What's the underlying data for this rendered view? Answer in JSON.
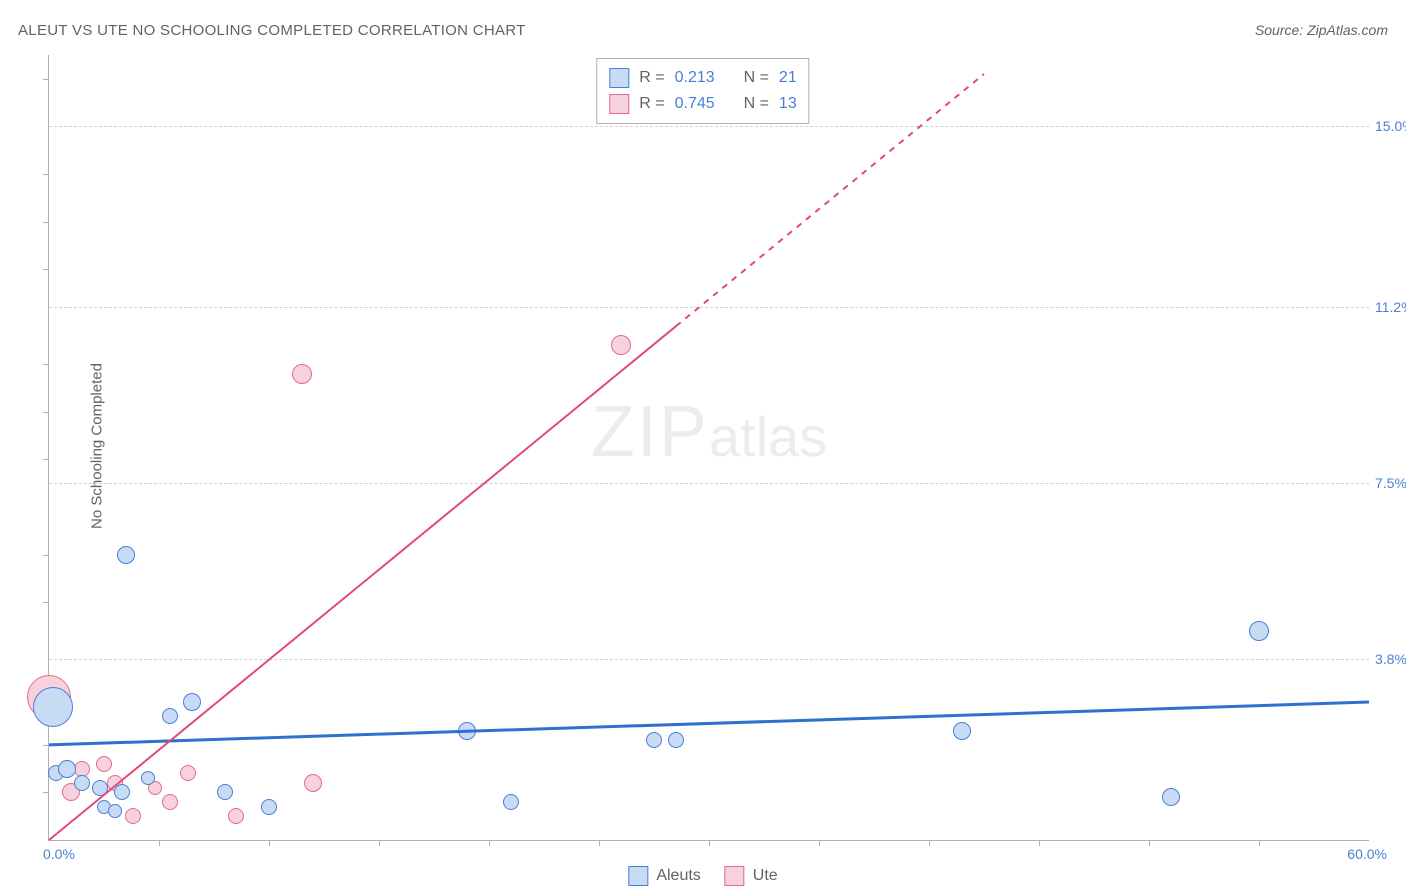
{
  "header": {
    "title": "ALEUT VS UTE NO SCHOOLING COMPLETED CORRELATION CHART",
    "source": "Source: ZipAtlas.com"
  },
  "axis": {
    "y_title": "No Schooling Completed",
    "x_min": 0.0,
    "x_max": 60.0,
    "y_min": 0.0,
    "y_max": 16.5,
    "x_min_label": "0.0%",
    "x_max_label": "60.0%",
    "y_grid": [
      {
        "v": 3.8,
        "label": "3.8%"
      },
      {
        "v": 7.5,
        "label": "7.5%"
      },
      {
        "v": 11.2,
        "label": "11.2%"
      },
      {
        "v": 15.0,
        "label": "15.0%"
      }
    ],
    "x_ticks": [
      5,
      10,
      15,
      20,
      25,
      30,
      35,
      40,
      45,
      50,
      55
    ],
    "y_ticks": [
      1,
      2,
      3,
      5,
      6,
      8,
      9,
      10,
      12,
      13,
      14,
      16
    ]
  },
  "series": {
    "aleuts": {
      "label": "Aleuts",
      "fill": "#c8dbf5",
      "stroke": "#4a7fd8",
      "line_color": "#2f6fd0",
      "line_width": 3,
      "trend": {
        "x1": 0,
        "y1": 2.0,
        "x2": 60,
        "y2": 2.9
      },
      "R": "0.213",
      "N": "21",
      "points": [
        {
          "x": 0.2,
          "y": 2.8,
          "r": 20
        },
        {
          "x": 0.3,
          "y": 1.4,
          "r": 8
        },
        {
          "x": 0.8,
          "y": 1.5,
          "r": 9
        },
        {
          "x": 1.5,
          "y": 1.2,
          "r": 8
        },
        {
          "x": 2.3,
          "y": 1.1,
          "r": 8
        },
        {
          "x": 2.5,
          "y": 0.7,
          "r": 7
        },
        {
          "x": 3.3,
          "y": 1.0,
          "r": 8
        },
        {
          "x": 3.5,
          "y": 6.0,
          "r": 9
        },
        {
          "x": 3.0,
          "y": 0.6,
          "r": 7
        },
        {
          "x": 4.5,
          "y": 1.3,
          "r": 7
        },
        {
          "x": 5.5,
          "y": 2.6,
          "r": 8
        },
        {
          "x": 6.5,
          "y": 2.9,
          "r": 9
        },
        {
          "x": 8.0,
          "y": 1.0,
          "r": 8
        },
        {
          "x": 10.0,
          "y": 0.7,
          "r": 8
        },
        {
          "x": 19.0,
          "y": 2.3,
          "r": 9
        },
        {
          "x": 21.0,
          "y": 0.8,
          "r": 8
        },
        {
          "x": 27.5,
          "y": 2.1,
          "r": 8
        },
        {
          "x": 28.5,
          "y": 2.1,
          "r": 8
        },
        {
          "x": 41.5,
          "y": 2.3,
          "r": 9
        },
        {
          "x": 51.0,
          "y": 0.9,
          "r": 9
        },
        {
          "x": 55.0,
          "y": 4.4,
          "r": 10
        }
      ]
    },
    "ute": {
      "label": "Ute",
      "fill": "#f7d1db",
      "stroke": "#e56b8d",
      "line_color": "#e14a78",
      "line_width": 2,
      "trend_solid": {
        "x1": 0,
        "y1": 0.0,
        "x2": 28.5,
        "y2": 10.8
      },
      "trend_dash": {
        "x1": 28.5,
        "y1": 10.8,
        "x2": 42.5,
        "y2": 16.1
      },
      "R": "0.745",
      "N": "13",
      "points": [
        {
          "x": 0.0,
          "y": 3.0,
          "r": 22
        },
        {
          "x": 1.0,
          "y": 1.0,
          "r": 9
        },
        {
          "x": 1.5,
          "y": 1.5,
          "r": 8
        },
        {
          "x": 2.5,
          "y": 1.6,
          "r": 8
        },
        {
          "x": 3.0,
          "y": 1.2,
          "r": 8
        },
        {
          "x": 3.8,
          "y": 0.5,
          "r": 8
        },
        {
          "x": 4.8,
          "y": 1.1,
          "r": 7
        },
        {
          "x": 5.5,
          "y": 0.8,
          "r": 8
        },
        {
          "x": 6.3,
          "y": 1.4,
          "r": 8
        },
        {
          "x": 8.5,
          "y": 0.5,
          "r": 8
        },
        {
          "x": 11.5,
          "y": 9.8,
          "r": 10
        },
        {
          "x": 12.0,
          "y": 1.2,
          "r": 9
        },
        {
          "x": 26.0,
          "y": 10.4,
          "r": 10
        }
      ]
    }
  },
  "watermark": {
    "zip": "ZIP",
    "atlas": "atlas"
  },
  "legend_top": {
    "R_label": "R =",
    "N_label": "N ="
  }
}
